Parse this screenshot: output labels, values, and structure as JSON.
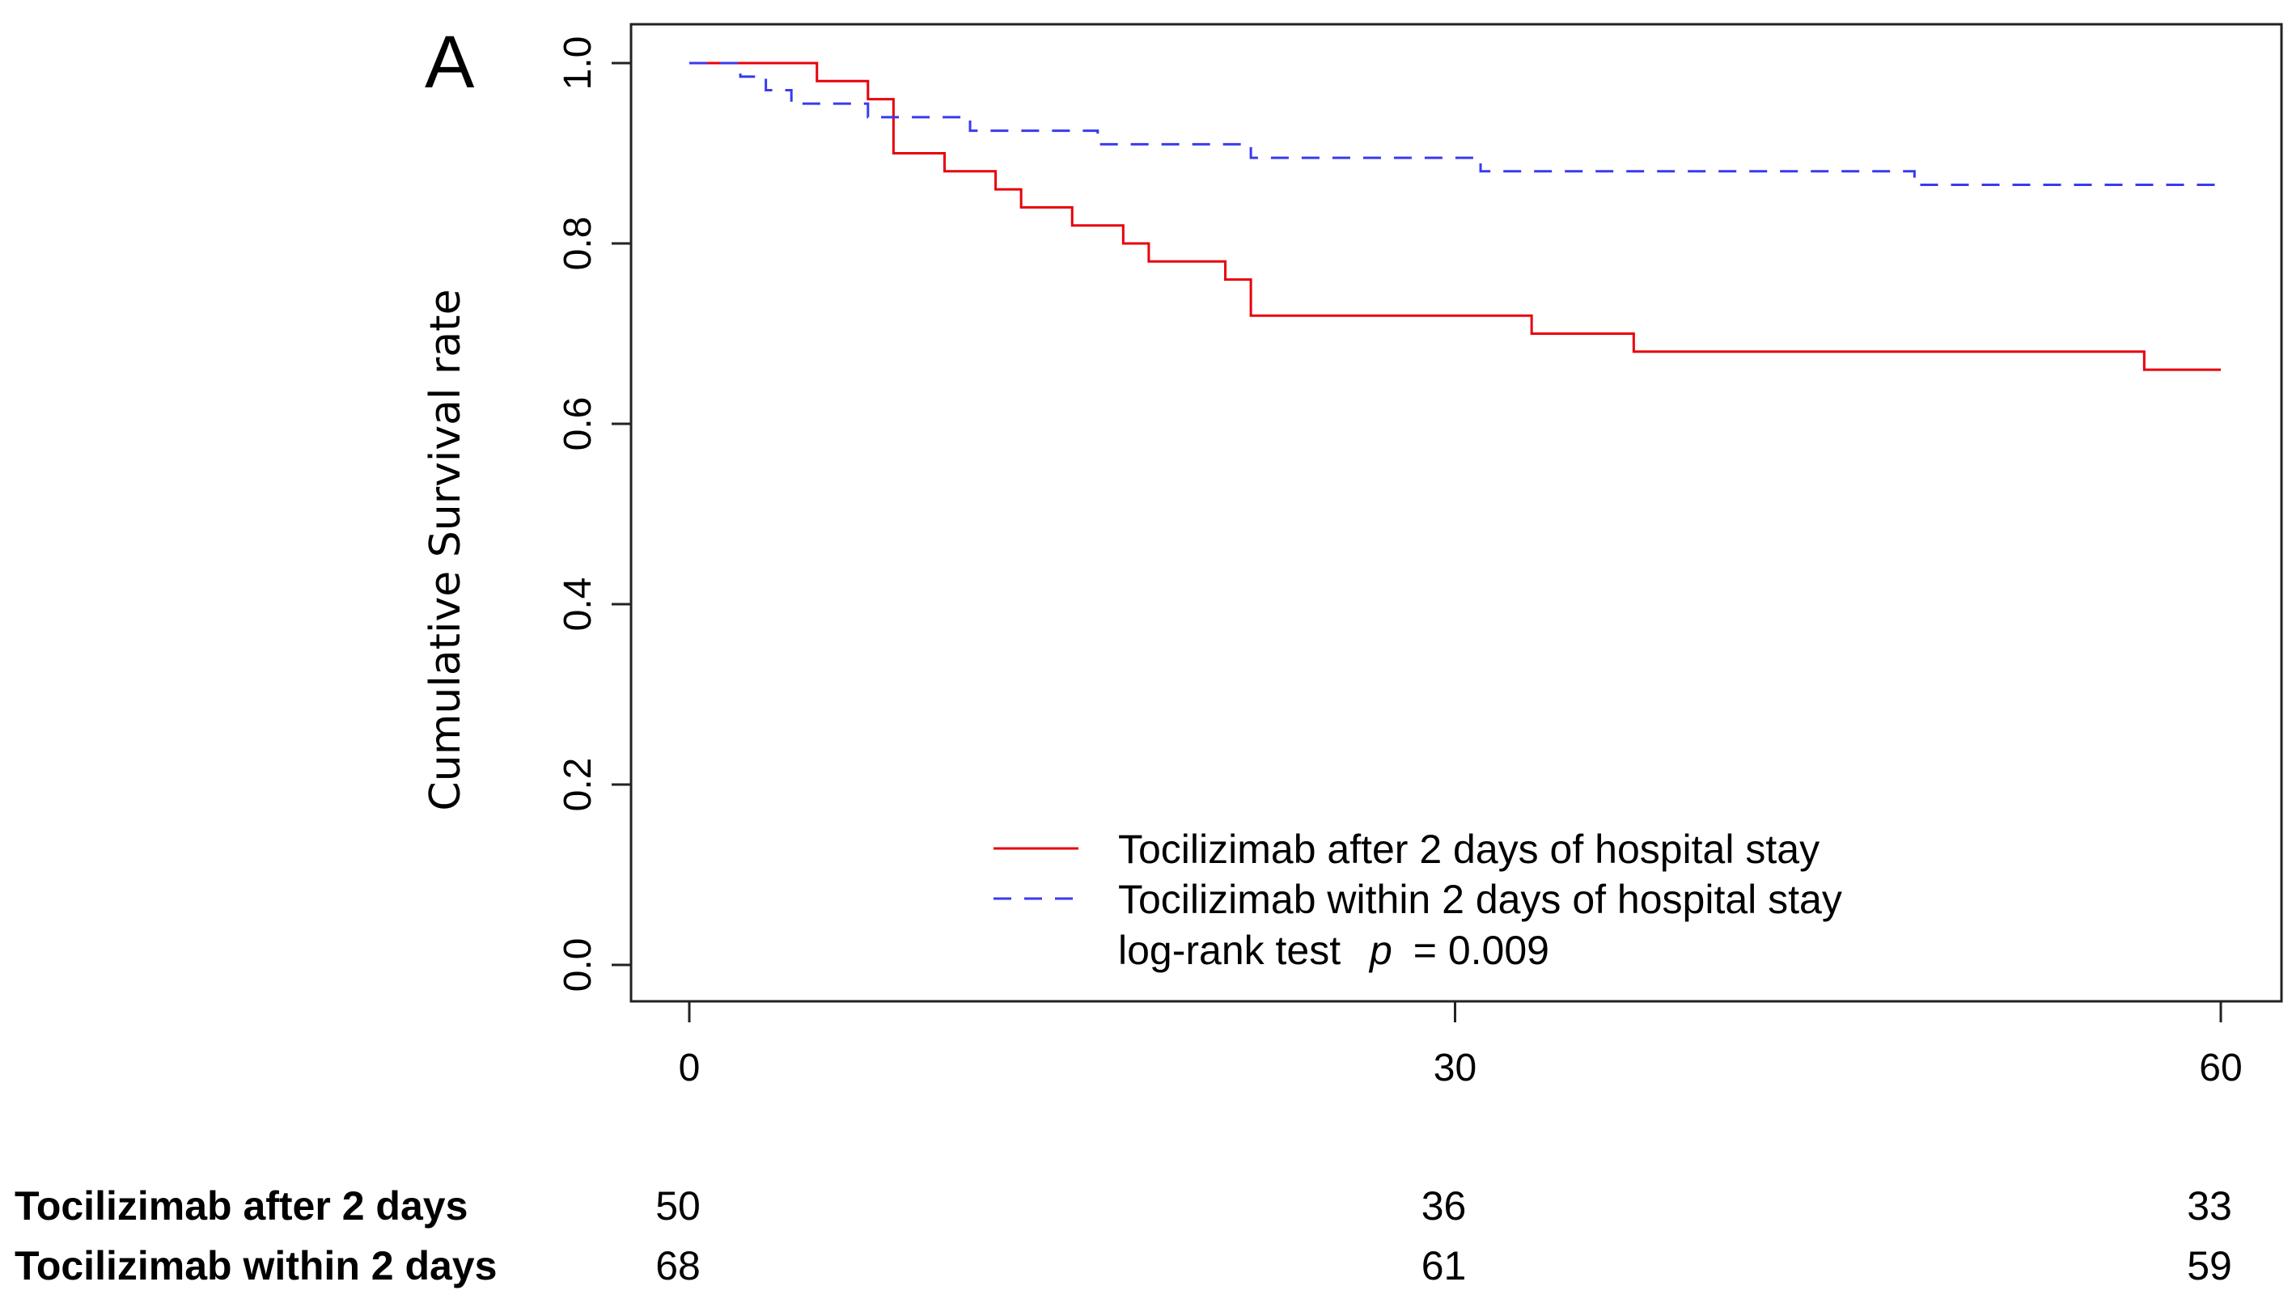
{
  "panel_label": "A",
  "chart_data": {
    "type": "line",
    "subtype": "kaplan-meier step survival curve",
    "title": "",
    "xlabel": "",
    "ylabel": "Cumulative Survival rate",
    "xlim": [
      0,
      60
    ],
    "ylim": [
      0.0,
      1.0
    ],
    "x_ticks": [
      0,
      30,
      60
    ],
    "x_tick_labels": [
      "0",
      "30",
      "60"
    ],
    "y_ticks": [
      0.0,
      0.2,
      0.4,
      0.6,
      0.8,
      1.0
    ],
    "y_tick_labels": [
      "0.0",
      "0.2",
      "0.4",
      "0.6",
      "0.8",
      "1.0"
    ],
    "grid": false,
    "legend_position": "bottom-right",
    "series": [
      {
        "name": "Tocilizimab after 2 days of hospital stay",
        "color": "#e8000b",
        "line_style": "solid",
        "steps": [
          [
            0,
            1.0
          ],
          [
            5,
            0.98
          ],
          [
            7,
            0.96
          ],
          [
            8,
            0.9
          ],
          [
            10,
            0.88
          ],
          [
            12,
            0.86
          ],
          [
            13,
            0.84
          ],
          [
            15,
            0.82
          ],
          [
            17,
            0.8
          ],
          [
            18,
            0.78
          ],
          [
            21,
            0.76
          ],
          [
            22,
            0.72
          ],
          [
            33,
            0.7
          ],
          [
            37,
            0.68
          ],
          [
            57,
            0.66
          ],
          [
            60,
            0.66
          ]
        ]
      },
      {
        "name": "Tocilizimab within 2 days of hospital stay",
        "color": "#3a3aee",
        "line_style": "dashed",
        "steps": [
          [
            0,
            1.0
          ],
          [
            2,
            0.985
          ],
          [
            3,
            0.97
          ],
          [
            4,
            0.955
          ],
          [
            7,
            0.94
          ],
          [
            11,
            0.925
          ],
          [
            16,
            0.91
          ],
          [
            22,
            0.895
          ],
          [
            31,
            0.88
          ],
          [
            48,
            0.865
          ],
          [
            60,
            0.865
          ]
        ]
      }
    ],
    "annotation": {
      "prefix": "log-rank test",
      "stat": "p",
      "value_text": "= 0.009"
    },
    "risk_table": {
      "times": [
        "0",
        "30",
        "60"
      ],
      "rows": [
        {
          "label": "Tocilizimab after 2 days",
          "counts": [
            "50",
            "36",
            "33"
          ]
        },
        {
          "label": "Tocilizimab within 2 days",
          "counts": [
            "68",
            "61",
            "59"
          ]
        }
      ]
    }
  }
}
